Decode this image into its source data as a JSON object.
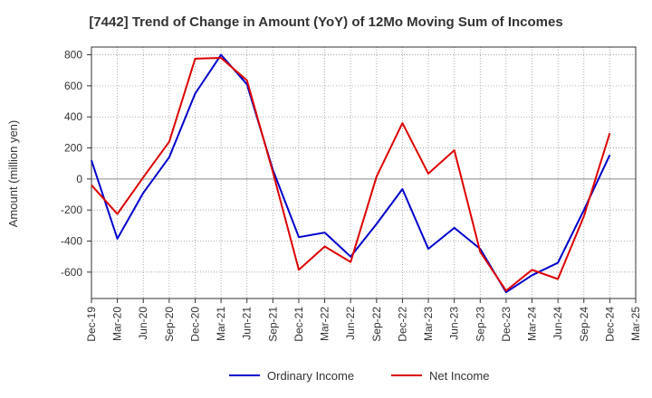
{
  "chart_data": {
    "type": "line",
    "title": "[7442]  Trend of Change in Amount (YoY) of 12Mo Moving Sum of Incomes",
    "ylabel": "Amount (million yen)",
    "xlabel": "",
    "ylim": [
      -770,
      850
    ],
    "yticks": [
      800,
      600,
      400,
      200,
      0,
      -200,
      -400,
      -600
    ],
    "categories": [
      "Dec-19",
      "Mar-20",
      "Jun-20",
      "Sep-20",
      "Dec-20",
      "Mar-21",
      "Jun-21",
      "Sep-21",
      "Dec-21",
      "Mar-22",
      "Jun-22",
      "Sep-22",
      "Dec-22",
      "Mar-23",
      "Jun-23",
      "Sep-23",
      "Dec-23",
      "Mar-24",
      "Jun-24",
      "Sep-24",
      "Dec-24",
      "Mar-25"
    ],
    "grid": true,
    "legend_position": "bottom",
    "series": [
      {
        "name": "Ordinary Income",
        "color": "#0000cc",
        "values": [
          120,
          -385,
          -90,
          140,
          550,
          800,
          610,
          60,
          -375,
          -345,
          -500,
          -290,
          -65,
          -450,
          -315,
          -450,
          -730,
          -620,
          -540,
          -200,
          155,
          null
        ]
      },
      {
        "name": "Net Income",
        "color": "#dd0000",
        "values": [
          -40,
          -225,
          10,
          240,
          775,
          780,
          635,
          45,
          -585,
          -435,
          -535,
          15,
          360,
          35,
          185,
          -470,
          -720,
          -585,
          -645,
          -240,
          295,
          null
        ]
      }
    ]
  }
}
